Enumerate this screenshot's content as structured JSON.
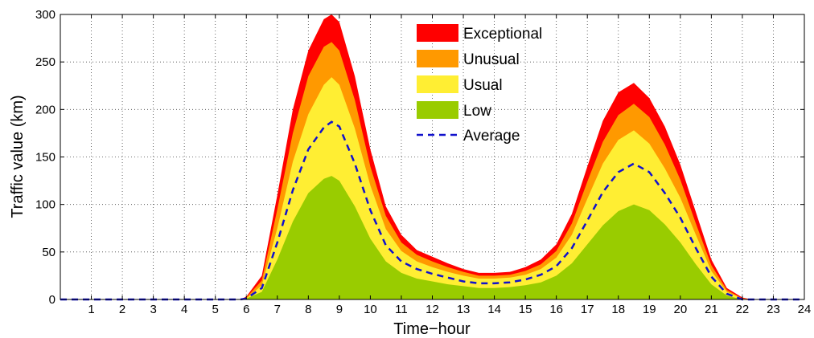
{
  "chart_data": {
    "type": "area",
    "title": "",
    "xlabel": "Time−hour",
    "ylabel": "Traffic value (km)",
    "xlim": [
      0,
      24
    ],
    "ylim": [
      0,
      300
    ],
    "grid": true,
    "legend_position": "top-center",
    "x_ticks": [
      "1",
      "2",
      "3",
      "4",
      "5",
      "6",
      "7",
      "8",
      "9",
      "10",
      "11",
      "12",
      "13",
      "14",
      "15",
      "16",
      "17",
      "18",
      "19",
      "20",
      "21",
      "22",
      "23",
      "24"
    ],
    "y_ticks": [
      "0",
      "50",
      "100",
      "150",
      "200",
      "250",
      "300"
    ],
    "x": [
      0,
      5.8,
      6,
      6.5,
      7,
      7.5,
      8,
      8.5,
      8.75,
      9,
      9.5,
      10,
      10.5,
      11,
      11.5,
      12,
      12.5,
      13,
      13.5,
      14,
      14.5,
      15,
      15.5,
      16,
      16.5,
      17,
      17.5,
      18,
      18.5,
      19,
      19.5,
      20,
      20.5,
      21,
      21.5,
      22,
      22.3,
      24
    ],
    "series": [
      {
        "name": "Exceptional",
        "color": "#ff0000",
        "values": [
          0,
          0,
          3,
          25,
          110,
          200,
          262,
          295,
          300,
          292,
          235,
          158,
          98,
          68,
          52,
          45,
          38,
          32,
          28,
          28,
          29,
          34,
          42,
          58,
          90,
          140,
          188,
          218,
          228,
          212,
          182,
          142,
          92,
          42,
          12,
          2,
          0,
          0
        ]
      },
      {
        "name": "Unusual",
        "color": "#ff9900",
        "values": [
          0,
          0,
          2,
          20,
          95,
          175,
          235,
          266,
          271,
          262,
          210,
          140,
          88,
          60,
          47,
          40,
          34,
          29,
          25,
          25,
          26,
          30,
          37,
          51,
          80,
          124,
          166,
          194,
          206,
          192,
          163,
          126,
          80,
          36,
          10,
          1,
          0,
          0
        ]
      },
      {
        "name": "Usual",
        "color": "#ffee33",
        "values": [
          0,
          0,
          1,
          15,
          75,
          145,
          195,
          226,
          234,
          226,
          180,
          120,
          74,
          51,
          40,
          34,
          29,
          25,
          22,
          22,
          23,
          26,
          32,
          44,
          68,
          106,
          143,
          168,
          178,
          164,
          138,
          107,
          68,
          30,
          8,
          1,
          0,
          0
        ]
      },
      {
        "name": "Low",
        "color": "#99cc00",
        "values": [
          0,
          0,
          1,
          8,
          42,
          82,
          112,
          127,
          130,
          125,
          98,
          64,
          40,
          28,
          22,
          19,
          16,
          14,
          12,
          12,
          13,
          15,
          18,
          25,
          38,
          58,
          78,
          93,
          100,
          94,
          79,
          60,
          37,
          16,
          4,
          0,
          0,
          0
        ]
      }
    ],
    "average": {
      "name": "Average",
      "color": "#1111cc",
      "values": [
        0,
        0,
        1,
        12,
        60,
        115,
        158,
        181,
        187,
        182,
        143,
        94,
        57,
        40,
        32,
        27,
        23,
        19,
        17,
        17,
        18,
        21,
        26,
        35,
        54,
        83,
        113,
        134,
        143,
        134,
        112,
        86,
        54,
        24,
        6,
        0,
        0,
        0
      ]
    }
  }
}
